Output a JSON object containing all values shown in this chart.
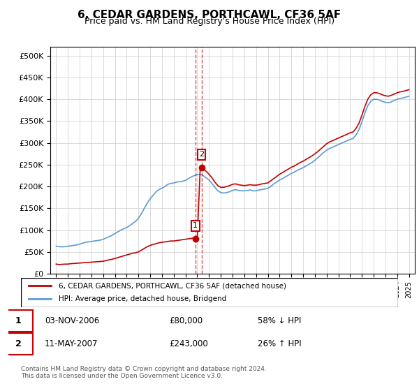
{
  "title": "6, CEDAR GARDENS, PORTHCAWL, CF36 5AF",
  "subtitle": "Price paid vs. HM Land Registry's House Price Index (HPI)",
  "legend_line1": "6, CEDAR GARDENS, PORTHCAWL, CF36 5AF (detached house)",
  "legend_line2": "HPI: Average price, detached house, Bridgend",
  "footer": "Contains HM Land Registry data © Crown copyright and database right 2024.\nThis data is licensed under the Open Government Licence v3.0.",
  "transaction1_date": "03-NOV-2006",
  "transaction1_price": 80000,
  "transaction1_label": "58% ↓ HPI",
  "transaction1_year": 2006.84,
  "transaction2_date": "11-MAY-2007",
  "transaction2_price": 243000,
  "transaction2_label": "26% ↑ HPI",
  "transaction2_year": 2007.36,
  "hpi_color": "#5b9bd5",
  "price_color": "#c00000",
  "marker_label_box_color": "#cc0000",
  "ylim_max": 520000,
  "ylim_min": 0,
  "xlim_min": 1994.5,
  "xlim_max": 2025.5,
  "hpi_data_years": [
    1995,
    1995.25,
    1995.5,
    1995.75,
    1996,
    1996.25,
    1996.5,
    1996.75,
    1997,
    1997.25,
    1997.5,
    1997.75,
    1998,
    1998.25,
    1998.5,
    1998.75,
    1999,
    1999.25,
    1999.5,
    1999.75,
    2000,
    2000.25,
    2000.5,
    2000.75,
    2001,
    2001.25,
    2001.5,
    2001.75,
    2002,
    2002.25,
    2002.5,
    2002.75,
    2003,
    2003.25,
    2003.5,
    2003.75,
    2004,
    2004.25,
    2004.5,
    2004.75,
    2005,
    2005.25,
    2005.5,
    2005.75,
    2006,
    2006.25,
    2006.5,
    2006.75,
    2007,
    2007.25,
    2007.5,
    2007.75,
    2008,
    2008.25,
    2008.5,
    2008.75,
    2009,
    2009.25,
    2009.5,
    2009.75,
    2010,
    2010.25,
    2010.5,
    2010.75,
    2011,
    2011.25,
    2011.5,
    2011.75,
    2012,
    2012.25,
    2012.5,
    2012.75,
    2013,
    2013.25,
    2013.5,
    2013.75,
    2014,
    2014.25,
    2014.5,
    2014.75,
    2015,
    2015.25,
    2015.5,
    2015.75,
    2016,
    2016.25,
    2016.5,
    2016.75,
    2017,
    2017.25,
    2017.5,
    2017.75,
    2018,
    2018.25,
    2018.5,
    2018.75,
    2019,
    2019.25,
    2019.5,
    2019.75,
    2020,
    2020.25,
    2020.5,
    2020.75,
    2021,
    2021.25,
    2021.5,
    2021.75,
    2022,
    2022.25,
    2022.5,
    2022.75,
    2023,
    2023.25,
    2023.5,
    2023.75,
    2024,
    2024.25,
    2024.5,
    2024.75,
    2025
  ],
  "hpi_data_values": [
    63000,
    62000,
    61500,
    62000,
    63000,
    64000,
    65000,
    66000,
    68000,
    70000,
    72000,
    73000,
    74000,
    75000,
    76000,
    77000,
    79000,
    82000,
    85000,
    88000,
    92000,
    96000,
    100000,
    103000,
    106000,
    110000,
    115000,
    120000,
    127000,
    138000,
    150000,
    162000,
    172000,
    180000,
    188000,
    193000,
    196000,
    200000,
    205000,
    207000,
    208000,
    210000,
    211000,
    212000,
    214000,
    218000,
    222000,
    225000,
    227000,
    228000,
    225000,
    220000,
    215000,
    207000,
    198000,
    190000,
    186000,
    185000,
    186000,
    188000,
    191000,
    193000,
    191000,
    190000,
    190000,
    191000,
    192000,
    190000,
    190000,
    192000,
    193000,
    194000,
    196000,
    200000,
    206000,
    210000,
    215000,
    218000,
    222000,
    226000,
    230000,
    233000,
    237000,
    240000,
    243000,
    247000,
    251000,
    255000,
    260000,
    266000,
    272000,
    278000,
    283000,
    287000,
    290000,
    293000,
    296000,
    299000,
    302000,
    305000,
    308000,
    310000,
    318000,
    330000,
    348000,
    368000,
    385000,
    395000,
    400000,
    400000,
    398000,
    395000,
    393000,
    392000,
    394000,
    397000,
    400000,
    402000,
    403000,
    405000,
    407000
  ],
  "price_data_years": [
    1995,
    1995.25,
    1995.5,
    1995.75,
    1996,
    1996.25,
    1996.5,
    1996.75,
    1997,
    1997.25,
    1997.5,
    1997.75,
    1998,
    1998.25,
    1998.5,
    1998.75,
    1999,
    1999.25,
    1999.5,
    1999.75,
    2000,
    2000.25,
    2000.5,
    2000.75,
    2001,
    2001.25,
    2001.5,
    2001.75,
    2002,
    2002.25,
    2002.5,
    2002.75,
    2003,
    2003.25,
    2003.5,
    2003.75,
    2004,
    2004.25,
    2004.5,
    2004.75,
    2005,
    2005.25,
    2005.5,
    2005.75,
    2006,
    2006.25,
    2006.5,
    2006.75,
    2007,
    2007.25,
    2007.5,
    2007.75,
    2008,
    2008.25,
    2008.5,
    2008.75,
    2009,
    2009.25,
    2009.5,
    2009.75,
    2010,
    2010.25,
    2010.5,
    2010.75,
    2011,
    2011.25,
    2011.5,
    2011.75,
    2012,
    2012.25,
    2012.5,
    2012.75,
    2013,
    2013.25,
    2013.5,
    2013.75,
    2014,
    2014.25,
    2014.5,
    2014.75,
    2015,
    2015.25,
    2015.5,
    2015.75,
    2016,
    2016.25,
    2016.5,
    2016.75,
    2017,
    2017.25,
    2017.5,
    2017.75,
    2018,
    2018.25,
    2018.5,
    2018.75,
    2019,
    2019.25,
    2019.5,
    2019.75,
    2020,
    2020.25,
    2020.5,
    2020.75,
    2021,
    2021.25,
    2021.5,
    2021.75,
    2022,
    2022.25,
    2022.5,
    2022.75,
    2023,
    2023.25,
    2023.5,
    2023.75,
    2024,
    2024.25,
    2024.5,
    2024.75,
    2025
  ],
  "price_data_values": [
    22000,
    21000,
    21500,
    22000,
    22000,
    23000,
    23500,
    24000,
    24500,
    25000,
    25500,
    26000,
    26500,
    27000,
    27500,
    28000,
    28500,
    30000,
    32000,
    33000,
    35000,
    37000,
    39000,
    41000,
    43000,
    45000,
    47000,
    48000,
    50000,
    54000,
    58000,
    62000,
    65000,
    67000,
    69000,
    71000,
    72000,
    73000,
    74000,
    75000,
    75000,
    76000,
    77000,
    78000,
    79000,
    80000,
    81000,
    82000,
    80000,
    243000,
    240000,
    235000,
    228000,
    220000,
    210000,
    202000,
    198000,
    198000,
    200000,
    202000,
    205000,
    206000,
    204000,
    203000,
    202000,
    203000,
    204000,
    203000,
    203000,
    204000,
    206000,
    207000,
    208000,
    213000,
    218000,
    223000,
    228000,
    232000,
    236000,
    240000,
    244000,
    247000,
    251000,
    255000,
    258000,
    262000,
    266000,
    270000,
    275000,
    280000,
    286000,
    292000,
    298000,
    302000,
    305000,
    308000,
    311000,
    314000,
    317000,
    320000,
    323000,
    325000,
    333000,
    345000,
    363000,
    383000,
    400000,
    410000,
    415000,
    415000,
    413000,
    410000,
    408000,
    407000,
    409000,
    412000,
    415000,
    417000,
    418000,
    420000,
    422000
  ],
  "xtick_years": [
    1995,
    1996,
    1997,
    1998,
    1999,
    2000,
    2001,
    2002,
    2003,
    2004,
    2005,
    2006,
    2007,
    2008,
    2009,
    2010,
    2011,
    2012,
    2013,
    2014,
    2015,
    2016,
    2017,
    2018,
    2019,
    2020,
    2021,
    2022,
    2023,
    2024,
    2025
  ]
}
